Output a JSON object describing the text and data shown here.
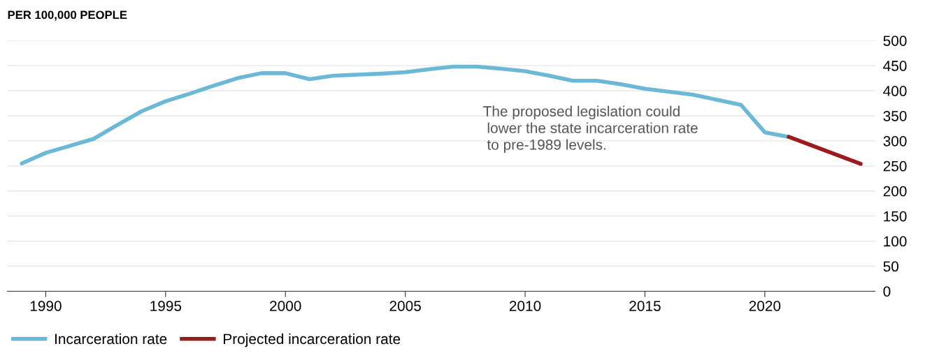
{
  "chart_data": {
    "type": "line",
    "title": "PER 100,000 PEOPLE",
    "annotations": [
      "The proposed legislation could\n lower the state incarceration rate\n to pre-1989 levels."
    ],
    "series": [
      {
        "name": "Incarceration rate",
        "color": "#6bb9d6",
        "x": [
          1989,
          1990,
          1991,
          1992,
          1993,
          1994,
          1995,
          1996,
          1997,
          1998,
          1999,
          2000,
          2001,
          2002,
          2003,
          2004,
          2005,
          2006,
          2007,
          2008,
          2009,
          2010,
          2011,
          2012,
          2013,
          2014,
          2015,
          2016,
          2017,
          2018,
          2019,
          2020,
          2021
        ],
        "values": [
          255,
          276,
          290,
          304,
          332,
          359,
          379,
          394,
          410,
          425,
          435,
          435,
          423,
          430,
          432,
          434,
          437,
          443,
          448,
          448,
          444,
          439,
          430,
          420,
          420,
          413,
          404,
          398,
          392,
          382,
          372,
          317,
          308
        ]
      },
      {
        "name": "Projected incarceration rate",
        "color": "#9b1b1f",
        "x": [
          2021,
          2024
        ],
        "values": [
          308,
          254
        ]
      }
    ],
    "xlim": [
      1988.4,
      2024.6
    ],
    "xticks": [
      1990,
      1995,
      2000,
      2005,
      2010,
      2015,
      2020
    ],
    "ylim": [
      0,
      500
    ],
    "yticks": [
      0,
      50,
      100,
      150,
      200,
      250,
      300,
      350,
      400,
      450,
      500
    ],
    "grid": "y",
    "legend": "bottom left",
    "marker": "none",
    "line_style": "solid"
  }
}
